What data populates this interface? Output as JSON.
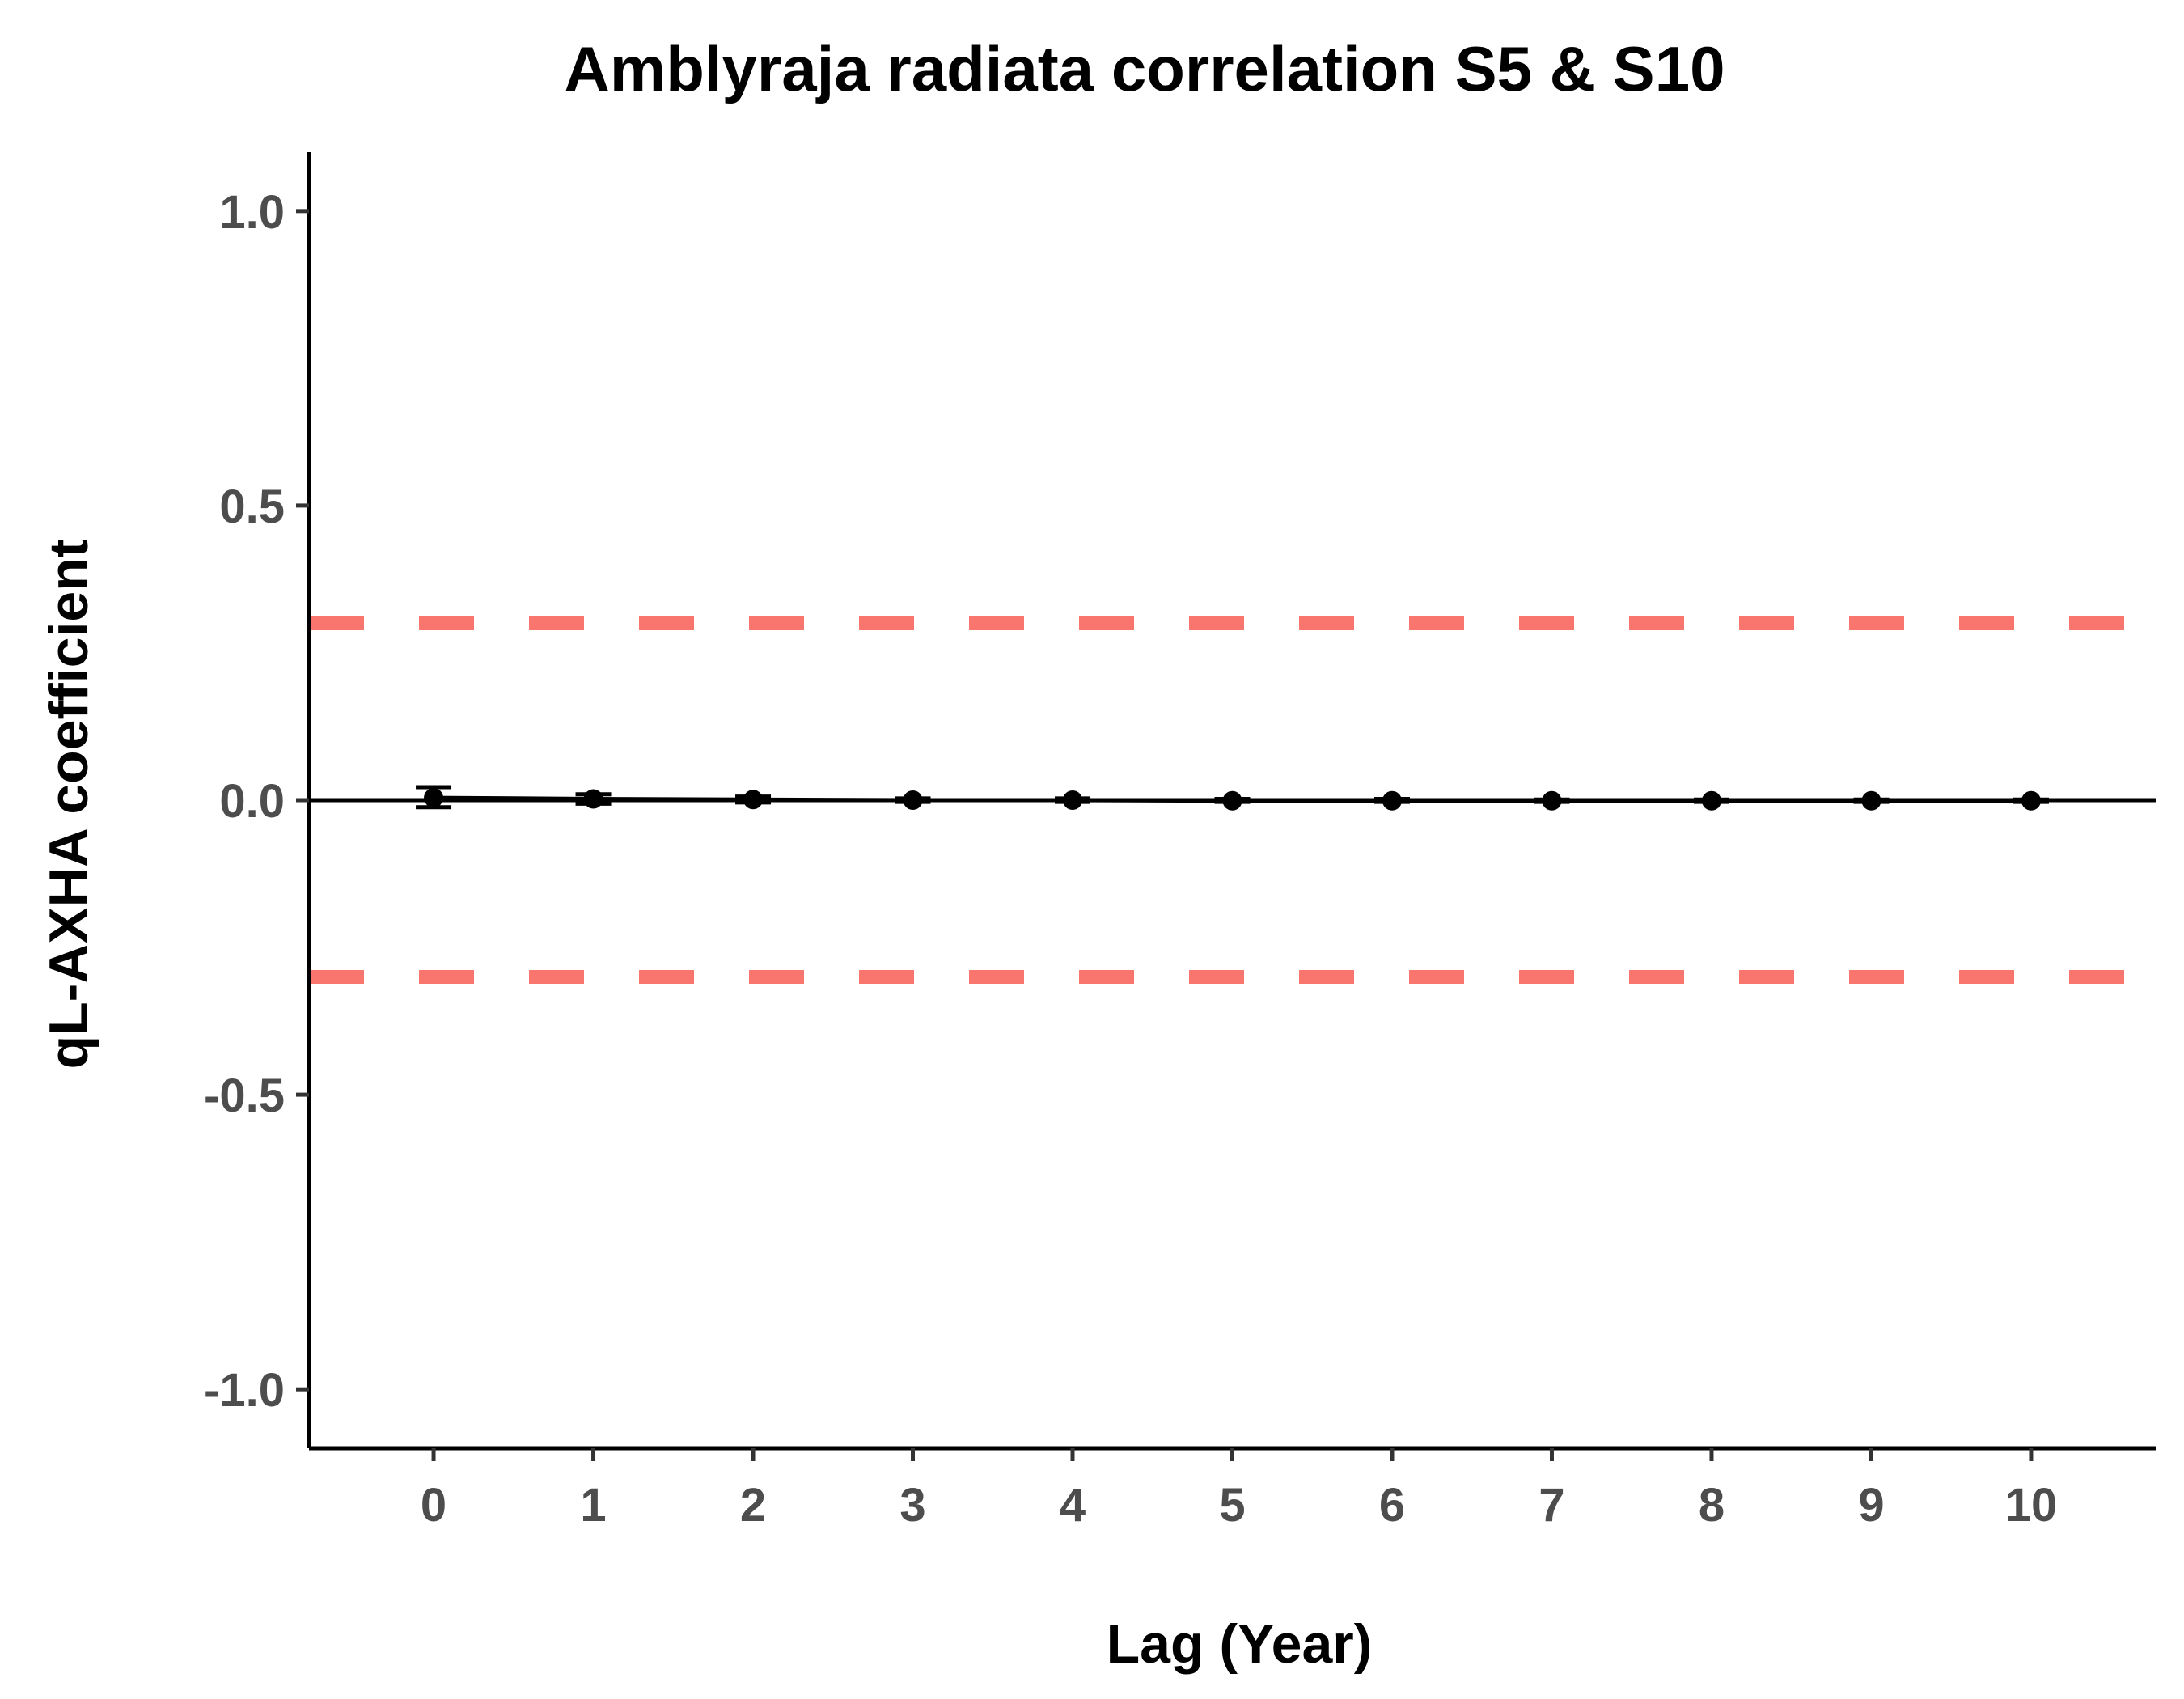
{
  "chart_data": {
    "type": "line",
    "title": "Amblyraja radiata correlation S5 & S10",
    "xlabel": "Lag (Year)",
    "ylabel": "qL-AXHA coefficient",
    "x_ticks": [
      "0",
      "1",
      "2",
      "3",
      "4",
      "5",
      "6",
      "7",
      "8",
      "9",
      "10"
    ],
    "y_ticks": [
      "-1.0",
      "-0.5",
      "0.0",
      "0.5",
      "1.0"
    ],
    "y_tick_values": [
      -1.0,
      -0.5,
      0.0,
      0.5,
      1.0
    ],
    "xlim": [
      -0.78,
      10.78
    ],
    "ylim": [
      -1.1,
      1.1
    ],
    "grid": false,
    "legend": "none",
    "series": [
      {
        "x": [
          0,
          1,
          2,
          3,
          4,
          5,
          6,
          7,
          8,
          9,
          10
        ],
        "values": [
          0.004,
          0.002,
          0.001,
          0.0,
          0.0,
          -0.001,
          -0.001,
          -0.001,
          -0.001,
          -0.001,
          -0.001
        ],
        "lower": [
          -0.012,
          -0.006,
          -0.004,
          -0.003,
          -0.003,
          -0.003,
          -0.003,
          -0.003,
          -0.003,
          -0.003,
          -0.003
        ],
        "upper": [
          0.022,
          0.01,
          0.006,
          0.003,
          0.003,
          0.002,
          0.002,
          0.001,
          0.001,
          0.001,
          0.001
        ],
        "color": "#000000"
      }
    ],
    "reference_lines": [
      {
        "y": 0.3,
        "style": "dashed",
        "color": "#f8766d"
      },
      {
        "y": -0.3,
        "style": "dashed",
        "color": "#f8766d"
      }
    ]
  }
}
